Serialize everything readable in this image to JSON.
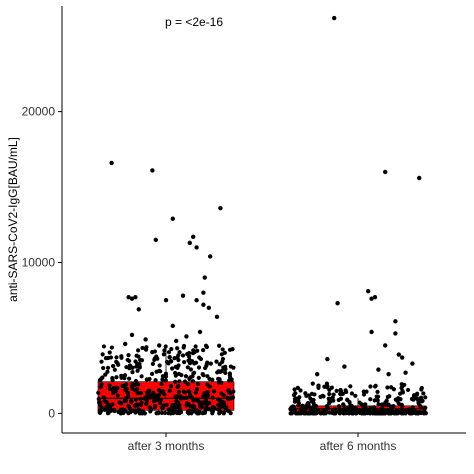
{
  "chart_data": {
    "type": "scatter",
    "subtype": "jitter-boxplot",
    "title": "",
    "xlabel": "",
    "ylabel": "anti-SARS-CoV2-IgG[BAU/mL]",
    "annotation": "p = <2e-16",
    "ylim": [
      -1300,
      27000
    ],
    "yticks": [
      0,
      10000,
      20000
    ],
    "ytick_labels": [
      "0",
      "10000",
      "20000"
    ],
    "categories": [
      "after 3 months",
      "after 6 months"
    ],
    "grid": false,
    "legend": "none",
    "colors": {
      "points": "#000000",
      "box_fill": "#ff0000",
      "box_outline": "#000000",
      "axis": "#000000"
    },
    "groups": [
      {
        "name": "after 3 months",
        "box": {
          "q1": 200,
          "median": 1000,
          "q3": 2100,
          "whisker_low": 0,
          "whisker_high": 4500
        },
        "outliers": [
          {
            "x": -0.8,
            "y": 16600
          },
          {
            "x": -0.2,
            "y": 16100
          },
          {
            "x": 0.8,
            "y": 13600
          },
          {
            "x": 0.1,
            "y": 12900
          },
          {
            "x": -0.15,
            "y": 11500
          },
          {
            "x": 0.4,
            "y": 11700
          },
          {
            "x": 0.35,
            "y": 11300
          },
          {
            "x": 0.45,
            "y": 11000
          },
          {
            "x": 0.65,
            "y": 10400
          },
          {
            "x": 0.57,
            "y": 9000
          },
          {
            "x": 0.55,
            "y": 8000
          },
          {
            "x": 0.25,
            "y": 7800
          },
          {
            "x": -0.55,
            "y": 7700
          },
          {
            "x": -0.5,
            "y": 7600
          },
          {
            "x": -0.45,
            "y": 7700
          },
          {
            "x": 0.0,
            "y": 7500
          },
          {
            "x": 0.45,
            "y": 7500
          },
          {
            "x": 0.55,
            "y": 7200
          },
          {
            "x": -0.4,
            "y": 6900
          },
          {
            "x": 0.63,
            "y": 7000
          },
          {
            "x": 0.75,
            "y": 6400
          },
          {
            "x": 0.1,
            "y": 5800
          },
          {
            "x": -0.5,
            "y": 5200
          },
          {
            "x": 0.3,
            "y": 5100
          },
          {
            "x": 0.5,
            "y": 5400
          },
          {
            "x": -0.3,
            "y": 4900
          },
          {
            "x": 0.15,
            "y": 4800
          },
          {
            "x": -0.6,
            "y": 4600
          },
          {
            "x": 0.6,
            "y": 4400
          },
          {
            "x": -0.1,
            "y": 4500
          }
        ],
        "n_bulk": 460,
        "bulk_max": 4500
      },
      {
        "name": "after 6 months",
        "box": {
          "q1": 100,
          "median": 300,
          "q3": 500,
          "whisker_low": 0,
          "whisker_high": 1000
        },
        "outliers": [
          {
            "x": -0.35,
            "y": 26200
          },
          {
            "x": 0.4,
            "y": 16000
          },
          {
            "x": 0.9,
            "y": 15600
          },
          {
            "x": 0.15,
            "y": 8100
          },
          {
            "x": 0.25,
            "y": 7700
          },
          {
            "x": 0.2,
            "y": 7600
          },
          {
            "x": -0.3,
            "y": 7300
          },
          {
            "x": 0.55,
            "y": 6100
          },
          {
            "x": 0.2,
            "y": 5400
          },
          {
            "x": 0.55,
            "y": 5300
          },
          {
            "x": 0.4,
            "y": 4500
          },
          {
            "x": 0.6,
            "y": 3900
          },
          {
            "x": -0.45,
            "y": 3600
          },
          {
            "x": 0.65,
            "y": 3700
          },
          {
            "x": 0.8,
            "y": 3300
          },
          {
            "x": -0.2,
            "y": 3100
          },
          {
            "x": 0.3,
            "y": 2900
          },
          {
            "x": 0.7,
            "y": 2700
          },
          {
            "x": -0.6,
            "y": 2600
          },
          {
            "x": 0.45,
            "y": 2600
          }
        ],
        "n_bulk": 380,
        "bulk_max": 2000
      }
    ]
  }
}
